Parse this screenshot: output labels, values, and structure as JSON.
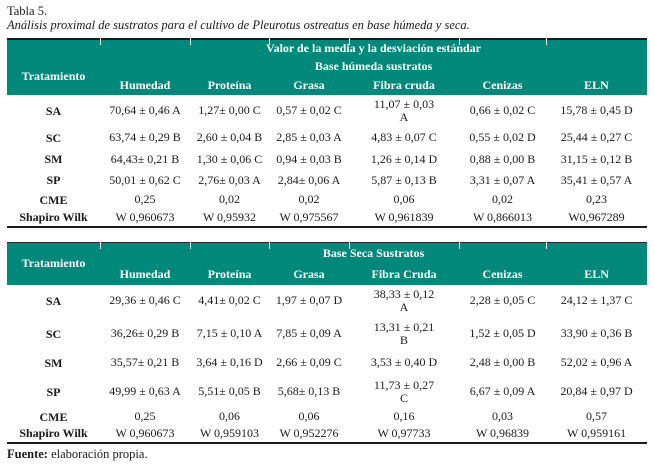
{
  "page": {
    "title": "Tabla 5.",
    "caption": "Análisis proximal de sustratos para el cultivo de Pleurotus ostreatus en base húmeda y seca.",
    "source_label": "Fuente:",
    "source_text": "elaboración propia."
  },
  "colors": {
    "header_bg": "#00887B",
    "header_text": "#FFFFFF",
    "body_text": "#1C1C1C",
    "rule": "#1B1B1B"
  },
  "tables": [
    {
      "name": "base-humeda",
      "superheader": "Valor de la media y la desviación estándar",
      "group_header": "Base húmeda sustratos",
      "corner_header": "Tratamiento",
      "columns": [
        "Humedad",
        "Proteína",
        "Grasa",
        "Fibra cruda",
        "Cenizas",
        "ELN"
      ],
      "rows": [
        {
          "label": "SA",
          "values": [
            "70,64 ± 0,46 A",
            "1,27± 0,00 C",
            "0,57 ± 0,02 C",
            "11,07 ± 0,03\nA",
            "0,66 ± 0,02 C",
            "15,78 ± 0,45 D"
          ]
        },
        {
          "label": "SC",
          "values": [
            "63,74 ± 0,29 B",
            "2,60 ± 0,04 B",
            "2,85 ± 0,03 A",
            "4,83 ± 0,07 C",
            "0,55 ± 0,02 D",
            "25,44 ± 0,27 C"
          ]
        },
        {
          "label": "SM",
          "values": [
            "64,43± 0,21 B",
            "1,30 ± 0,06 C",
            "0,94 ± 0,03 B",
            "1,26 ± 0,14 D",
            "0,88 ± 0,00 B",
            "31,15 ± 0,12 B"
          ]
        },
        {
          "label": "SP",
          "values": [
            "50,01 ± 0,62 C",
            "2,76± 0,03 A",
            "2,84± 0,06 A",
            "5,87 ± 0,13 B",
            "3,31 ± 0,07 A",
            "35,41 ± 0,57 A"
          ]
        },
        {
          "label": "CME",
          "values": [
            "0,25",
            "0,02",
            "0,02",
            "0,06",
            "0,02",
            "0,23"
          ]
        },
        {
          "label": "Shapiro Wilk",
          "values": [
            "W 0,960673",
            "W 0,95932",
            "W 0,975567",
            "W 0,961839",
            "W 0,866013",
            "W0,967289"
          ]
        }
      ]
    },
    {
      "name": "base-seca",
      "superheader": null,
      "group_header": "Base Seca Sustratos",
      "corner_header": "Tratamiento",
      "columns": [
        "Humedad",
        "Proteína",
        "Grasa",
        "Fibra Cruda",
        "Cenizas",
        "ELN"
      ],
      "rows": [
        {
          "label": "SA",
          "values": [
            "29,36 ± 0,46 C",
            "4,41± 0,02 C",
            "1,97 ± 0,07 D",
            "38,33 ± 0,12\nA",
            "2,28 ± 0,05 C",
            "24,12 ± 1,37 C"
          ]
        },
        {
          "label": "SC",
          "values": [
            "36,26± 0,29 B",
            "7,15 ± 0,10 A",
            "7,85 ± 0,09 A",
            "13,31 ± 0,21\nB",
            "1,52 ± 0,05 D",
            "33,90 ± 0,36 B"
          ]
        },
        {
          "label": "SM",
          "values": [
            "35,57± 0,21 B",
            "3,64 ± 0,16 D",
            "2,66 ± 0,09 C",
            "3,53 ± 0,40 D",
            "2,48 ± 0,00 B",
            "52,02 ± 0,96 A"
          ]
        },
        {
          "label": "SP",
          "values": [
            "49,99 ± 0,63 A",
            "5,51± 0,05 B",
            "5,68± 0,13 B",
            "11,73 ± 0,27\nC",
            "6,67 ± 0,09 A",
            "20,84 ± 0,97 D"
          ]
        },
        {
          "label": "CME",
          "values": [
            "0,25",
            "0,06",
            "0,06",
            "0,16",
            "0,03",
            "0,57"
          ]
        },
        {
          "label": "Shapiro Wilk",
          "values": [
            "W 0,960673",
            "W 0,959103",
            "W 0,952276",
            "W 0,97733",
            "W 0,96839",
            "W 0,959161"
          ]
        }
      ]
    }
  ]
}
